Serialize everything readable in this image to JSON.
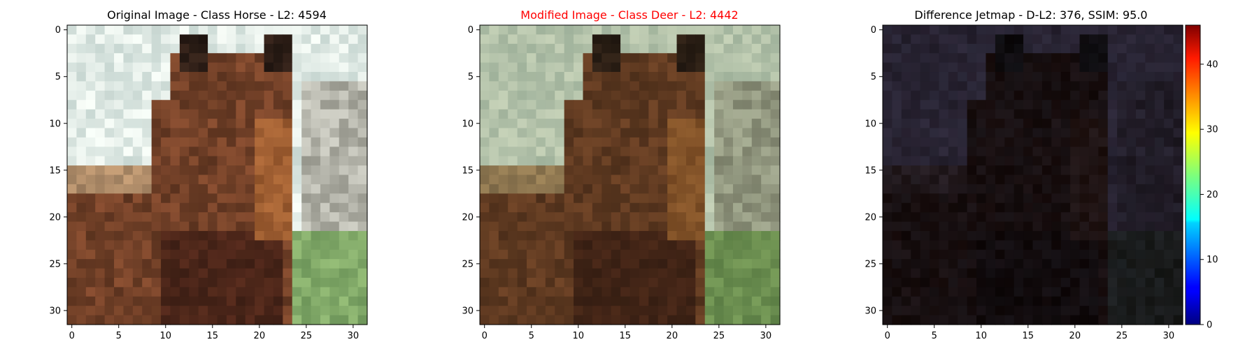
{
  "panels": [
    {
      "title": "Original Image - Class Horse - L2: 4594",
      "title_color": "#000000",
      "kind": "original"
    },
    {
      "title": "Modified Image - Class Deer - L2: 4442",
      "title_color": "#ff0000",
      "kind": "modified"
    },
    {
      "title": "Difference Jetmap - D-L2: 376, SSIM: 95.0",
      "title_color": "#000000",
      "kind": "difference"
    }
  ],
  "axis_ticks": {
    "x": [
      "0",
      "5",
      "10",
      "15",
      "20",
      "25",
      "30"
    ],
    "y": [
      "0",
      "5",
      "10",
      "15",
      "20",
      "25",
      "30"
    ]
  },
  "grid_size": 32,
  "colorbar": {
    "colormap": "jet",
    "min": 0,
    "max": 46,
    "ticks": [
      "0",
      "10",
      "20",
      "30",
      "40"
    ]
  }
}
